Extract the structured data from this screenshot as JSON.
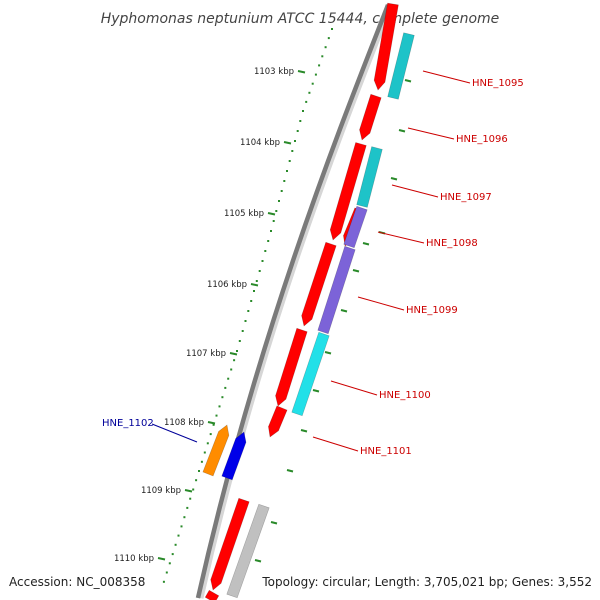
{
  "title": "Hyphomonas neptunium ATCC 15444, complete genome",
  "accession": "Accession: NC_008358",
  "topology": "Topology: circular; Length: 3,705,021 bp; Genes: 3,552",
  "colors": {
    "red_gene": "#ff0000",
    "cyan_gene": "#1ec3c8",
    "light_cyan_gene": "#22e0e8",
    "purple_gene": "#7c63d8",
    "orange_gene": "#ff8c00",
    "blue_gene": "#0000e8",
    "grey_gene": "#c0c0c0",
    "backbone": "#7a7a7a",
    "tick_green": "#2a8a2a",
    "label_red": "#cc0000",
    "label_blue": "#000099"
  },
  "scale": {
    "unit": "kbp",
    "labels": [
      "1103 kbp",
      "1104 kbp",
      "1105 kbp",
      "1106 kbp",
      "1107 kbp",
      "1108 kbp",
      "1109 kbp",
      "1110 kbp"
    ]
  },
  "gene_labels": [
    {
      "id": "HNE_1095",
      "color": "red"
    },
    {
      "id": "HNE_1096",
      "color": "red"
    },
    {
      "id": "HNE_1097",
      "color": "red"
    },
    {
      "id": "HNE_1098",
      "color": "red"
    },
    {
      "id": "HNE_1099",
      "color": "red"
    },
    {
      "id": "HNE_1100",
      "color": "red"
    },
    {
      "id": "HNE_1101",
      "color": "red"
    },
    {
      "id": "HNE_1102",
      "color": "blue"
    }
  ]
}
